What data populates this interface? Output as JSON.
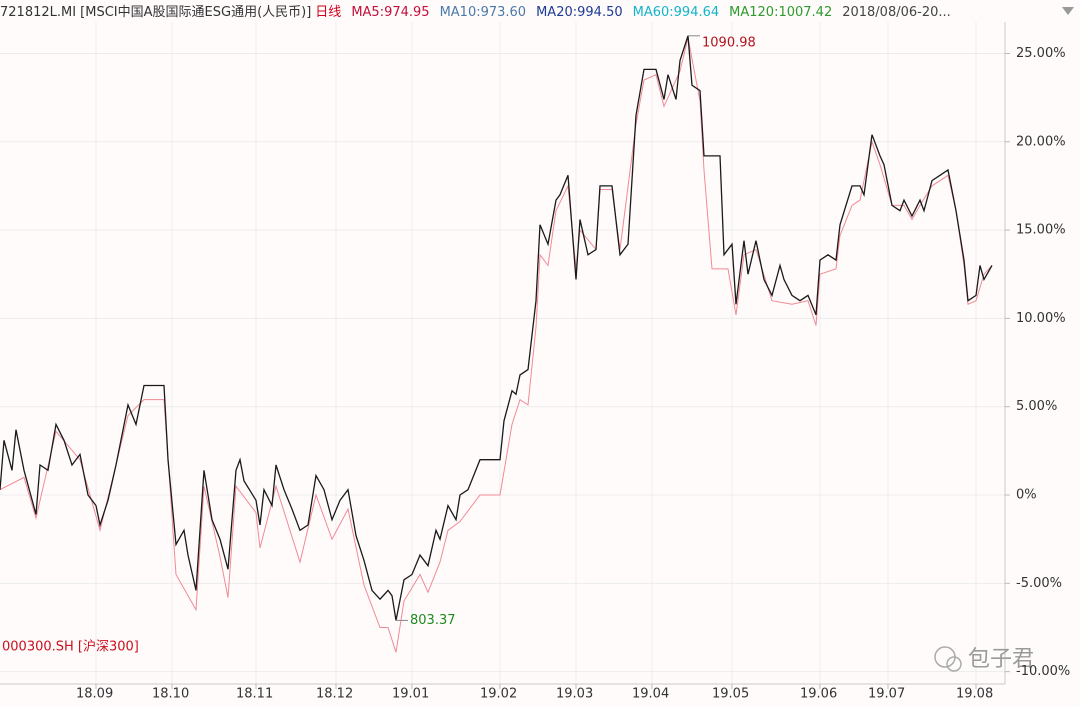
{
  "chart_data": {
    "type": "line",
    "header": [
      {
        "text": "721812L.MI [MSCI中国A股国际通ESG通用(人民币)]",
        "color": "#333333"
      },
      {
        "text": "日线",
        "color": "#d0021b"
      },
      {
        "text": "MA5:974.95",
        "color": "#c0103a"
      },
      {
        "text": "MA10:973.60",
        "color": "#4a7aa8"
      },
      {
        "text": "MA20:994.50",
        "color": "#1c3c94"
      },
      {
        "text": "MA60:994.64",
        "color": "#12b5c8"
      },
      {
        "text": "MA120:1007.42",
        "color": "#2e9a2e"
      },
      {
        "text": "2018/08/06-20...",
        "color": "#444444"
      }
    ],
    "annotations": [
      {
        "text": "1090.98",
        "color": "#b0141e"
      },
      {
        "text": "803.37",
        "color": "#1e8a1e"
      }
    ],
    "watermark": "包子君",
    "xlim": [
      0,
      251
    ],
    "xticks": [
      {
        "value": 24,
        "label": "18.09"
      },
      {
        "value": 43,
        "label": "18.10"
      },
      {
        "value": 64,
        "label": "18.11"
      },
      {
        "value": 84,
        "label": "18.12"
      },
      {
        "value": 103,
        "label": "19.01"
      },
      {
        "value": 125,
        "label": "19.02"
      },
      {
        "value": 144,
        "label": "19.03"
      },
      {
        "value": 163,
        "label": "19.04"
      },
      {
        "value": 183,
        "label": "19.05"
      },
      {
        "value": 205,
        "label": "19.06"
      },
      {
        "value": 222,
        "label": "19.07"
      },
      {
        "value": 244,
        "label": "19.08"
      }
    ],
    "ylim": [
      -10.7,
      26.6
    ],
    "yticks": [
      {
        "value": 25,
        "label": "25.00%"
      },
      {
        "value": 20,
        "label": "20.00%"
      },
      {
        "value": 15,
        "label": "15.00%"
      },
      {
        "value": 10,
        "label": "10.00%"
      },
      {
        "value": 5,
        "label": "5.00%"
      },
      {
        "value": 0,
        "label": "0%"
      },
      {
        "value": -5,
        "label": "-5.00%"
      },
      {
        "value": -10,
        "label": "-10.00%"
      }
    ],
    "grid": true,
    "series": [
      {
        "name": "721812L.MI [MSCI中国A股国际通ESG通用(人民币)]",
        "color": "#1a1a1a",
        "x": [
          0,
          1,
          3,
          4,
          6,
          9,
          10,
          12,
          14,
          16,
          18,
          20,
          22,
          24,
          25,
          27,
          29,
          32,
          34,
          36,
          41,
          42,
          44,
          46,
          47,
          49,
          51,
          53,
          55,
          57,
          59,
          60,
          61,
          64,
          65,
          66,
          68,
          69,
          71,
          73,
          75,
          77,
          79,
          81,
          83,
          85,
          87,
          89,
          91,
          93,
          95,
          97,
          98,
          99,
          101,
          103,
          105,
          107,
          109,
          110,
          112,
          114,
          115,
          117,
          120,
          125,
          126,
          128,
          129,
          130,
          132,
          134,
          135,
          137,
          139,
          140,
          142,
          144,
          145,
          147,
          149,
          150,
          153,
          155,
          157,
          159,
          161,
          164,
          166,
          167,
          169,
          170,
          172,
          173,
          175,
          176,
          180,
          181,
          183,
          184,
          186,
          187,
          189,
          191,
          193,
          195,
          196,
          198,
          200,
          202,
          204,
          205,
          207,
          209,
          210,
          213,
          215,
          216,
          218,
          220,
          221,
          223,
          225,
          226,
          228,
          230,
          231,
          233,
          235,
          237,
          239,
          241,
          242,
          244,
          245,
          246,
          248
        ],
        "values": [
          0.3,
          3.1,
          1.4,
          3.7,
          1.4,
          -1.1,
          1.7,
          1.4,
          4.0,
          3.1,
          1.7,
          2.3,
          0,
          -0.6,
          -1.7,
          -0.3,
          1.7,
          5.1,
          4.0,
          6.2,
          6.2,
          2.0,
          -2.8,
          -2.0,
          -3.4,
          -5.4,
          1.4,
          -1.4,
          -2.5,
          -4.2,
          1.4,
          2.0,
          0.8,
          -0.3,
          -1.7,
          0.3,
          -0.6,
          1.7,
          0.3,
          -0.8,
          -2.0,
          -1.7,
          1.1,
          0.3,
          -1.4,
          -0.3,
          0.3,
          -2.3,
          -3.7,
          -5.4,
          -5.9,
          -5.4,
          -5.7,
          -7.1,
          -4.8,
          -4.5,
          -3.4,
          -4.0,
          -2.0,
          -2.5,
          -0.6,
          -1.4,
          0,
          0.3,
          2.0,
          2.0,
          4.2,
          5.9,
          5.7,
          6.8,
          7.1,
          11.0,
          15.3,
          14.2,
          16.7,
          17.0,
          18.1,
          12.2,
          15.6,
          13.6,
          13.9,
          17.5,
          17.5,
          13.6,
          14.2,
          21.5,
          24.1,
          24.1,
          22.4,
          23.8,
          22.4,
          24.6,
          26.0,
          23.2,
          22.9,
          19.2,
          19.2,
          13.6,
          14.2,
          10.8,
          14.4,
          12.5,
          14.4,
          12.2,
          11.3,
          13.0,
          12.2,
          11.3,
          11.0,
          11.3,
          10.2,
          13.3,
          13.6,
          13.3,
          15.3,
          17.5,
          17.5,
          17.0,
          20.4,
          19.2,
          18.7,
          16.4,
          16.1,
          16.7,
          15.8,
          16.7,
          16.1,
          17.8,
          18.1,
          18.4,
          16.1,
          13.3,
          11.0,
          11.3,
          13.0,
          12.2,
          13.0
        ]
      },
      {
        "name": "000300.SH [沪深300]",
        "color": "#f08a94",
        "x": [
          0,
          6,
          9,
          14,
          20,
          25,
          32,
          36,
          41,
          44,
          49,
          51,
          55,
          57,
          59,
          64,
          65,
          69,
          75,
          79,
          83,
          87,
          91,
          95,
          97,
          99,
          101,
          105,
          107,
          110,
          112,
          115,
          120,
          125,
          128,
          130,
          132,
          134,
          135,
          137,
          139,
          142,
          144,
          145,
          149,
          150,
          153,
          155,
          159,
          161,
          164,
          166,
          170,
          172,
          175,
          176,
          178,
          182,
          184,
          186,
          189,
          193,
          198,
          202,
          204,
          205,
          209,
          210,
          213,
          215,
          218,
          220,
          223,
          226,
          228,
          230,
          233,
          237,
          239,
          241,
          242,
          244,
          246,
          248
        ],
        "values": [
          0.3,
          1.0,
          -1.3,
          3.6,
          2.0,
          -2.0,
          4.5,
          5.4,
          5.4,
          -4.5,
          -6.5,
          0.5,
          -3.5,
          -5.8,
          0.5,
          -1.0,
          -3.0,
          0.5,
          -3.8,
          0.0,
          -2.5,
          -0.8,
          -5.1,
          -7.5,
          -7.5,
          -8.9,
          -6.0,
          -4.5,
          -5.5,
          -3.8,
          -2.0,
          -1.5,
          0.0,
          0.0,
          4.0,
          5.4,
          5.1,
          9.5,
          13.6,
          13.0,
          16.1,
          17.5,
          12.8,
          15.0,
          13.9,
          17.3,
          17.3,
          13.9,
          21.0,
          23.5,
          23.8,
          22.0,
          24.0,
          25.9,
          22.3,
          18.4,
          12.8,
          12.8,
          10.2,
          13.6,
          13.9,
          11.0,
          10.8,
          11.0,
          9.6,
          12.5,
          12.8,
          14.7,
          16.4,
          16.7,
          20.0,
          18.7,
          16.4,
          16.4,
          15.6,
          16.4,
          17.5,
          18.1,
          16.1,
          13.0,
          10.8,
          11.0,
          12.5,
          13.0
        ]
      }
    ]
  }
}
